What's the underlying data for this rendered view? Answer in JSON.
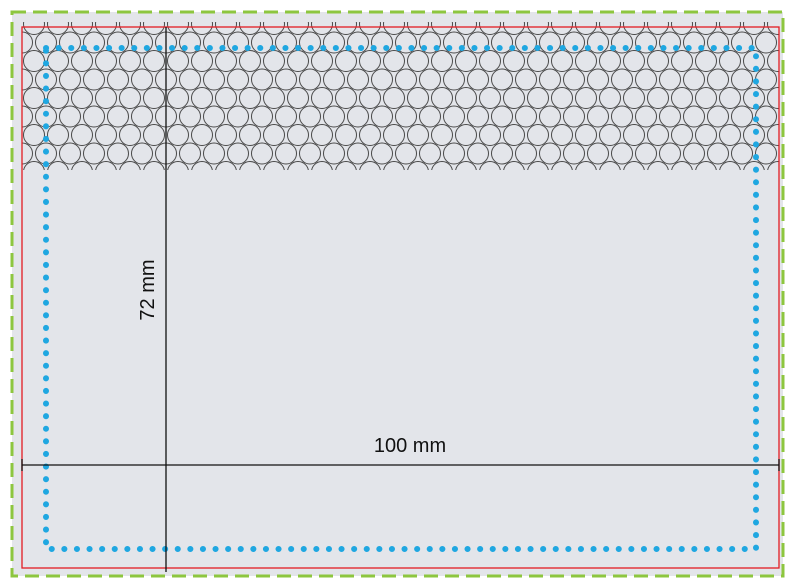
{
  "labels": {
    "width": "100 mm",
    "height": "72 mm"
  },
  "colors": {
    "background": "#e3e5ea",
    "outer_dashed_border": "#8dc63f",
    "trim_line": "#e31b23",
    "safe_zone_dots": "#1fa7e1",
    "dimension_lines": "#111111",
    "bubble_outline": "#4a4a4a"
  },
  "elements": {
    "outer_border": "dashed",
    "trim_line": "solid",
    "safe_zone": "dotted",
    "bubble_pattern": "circles"
  }
}
